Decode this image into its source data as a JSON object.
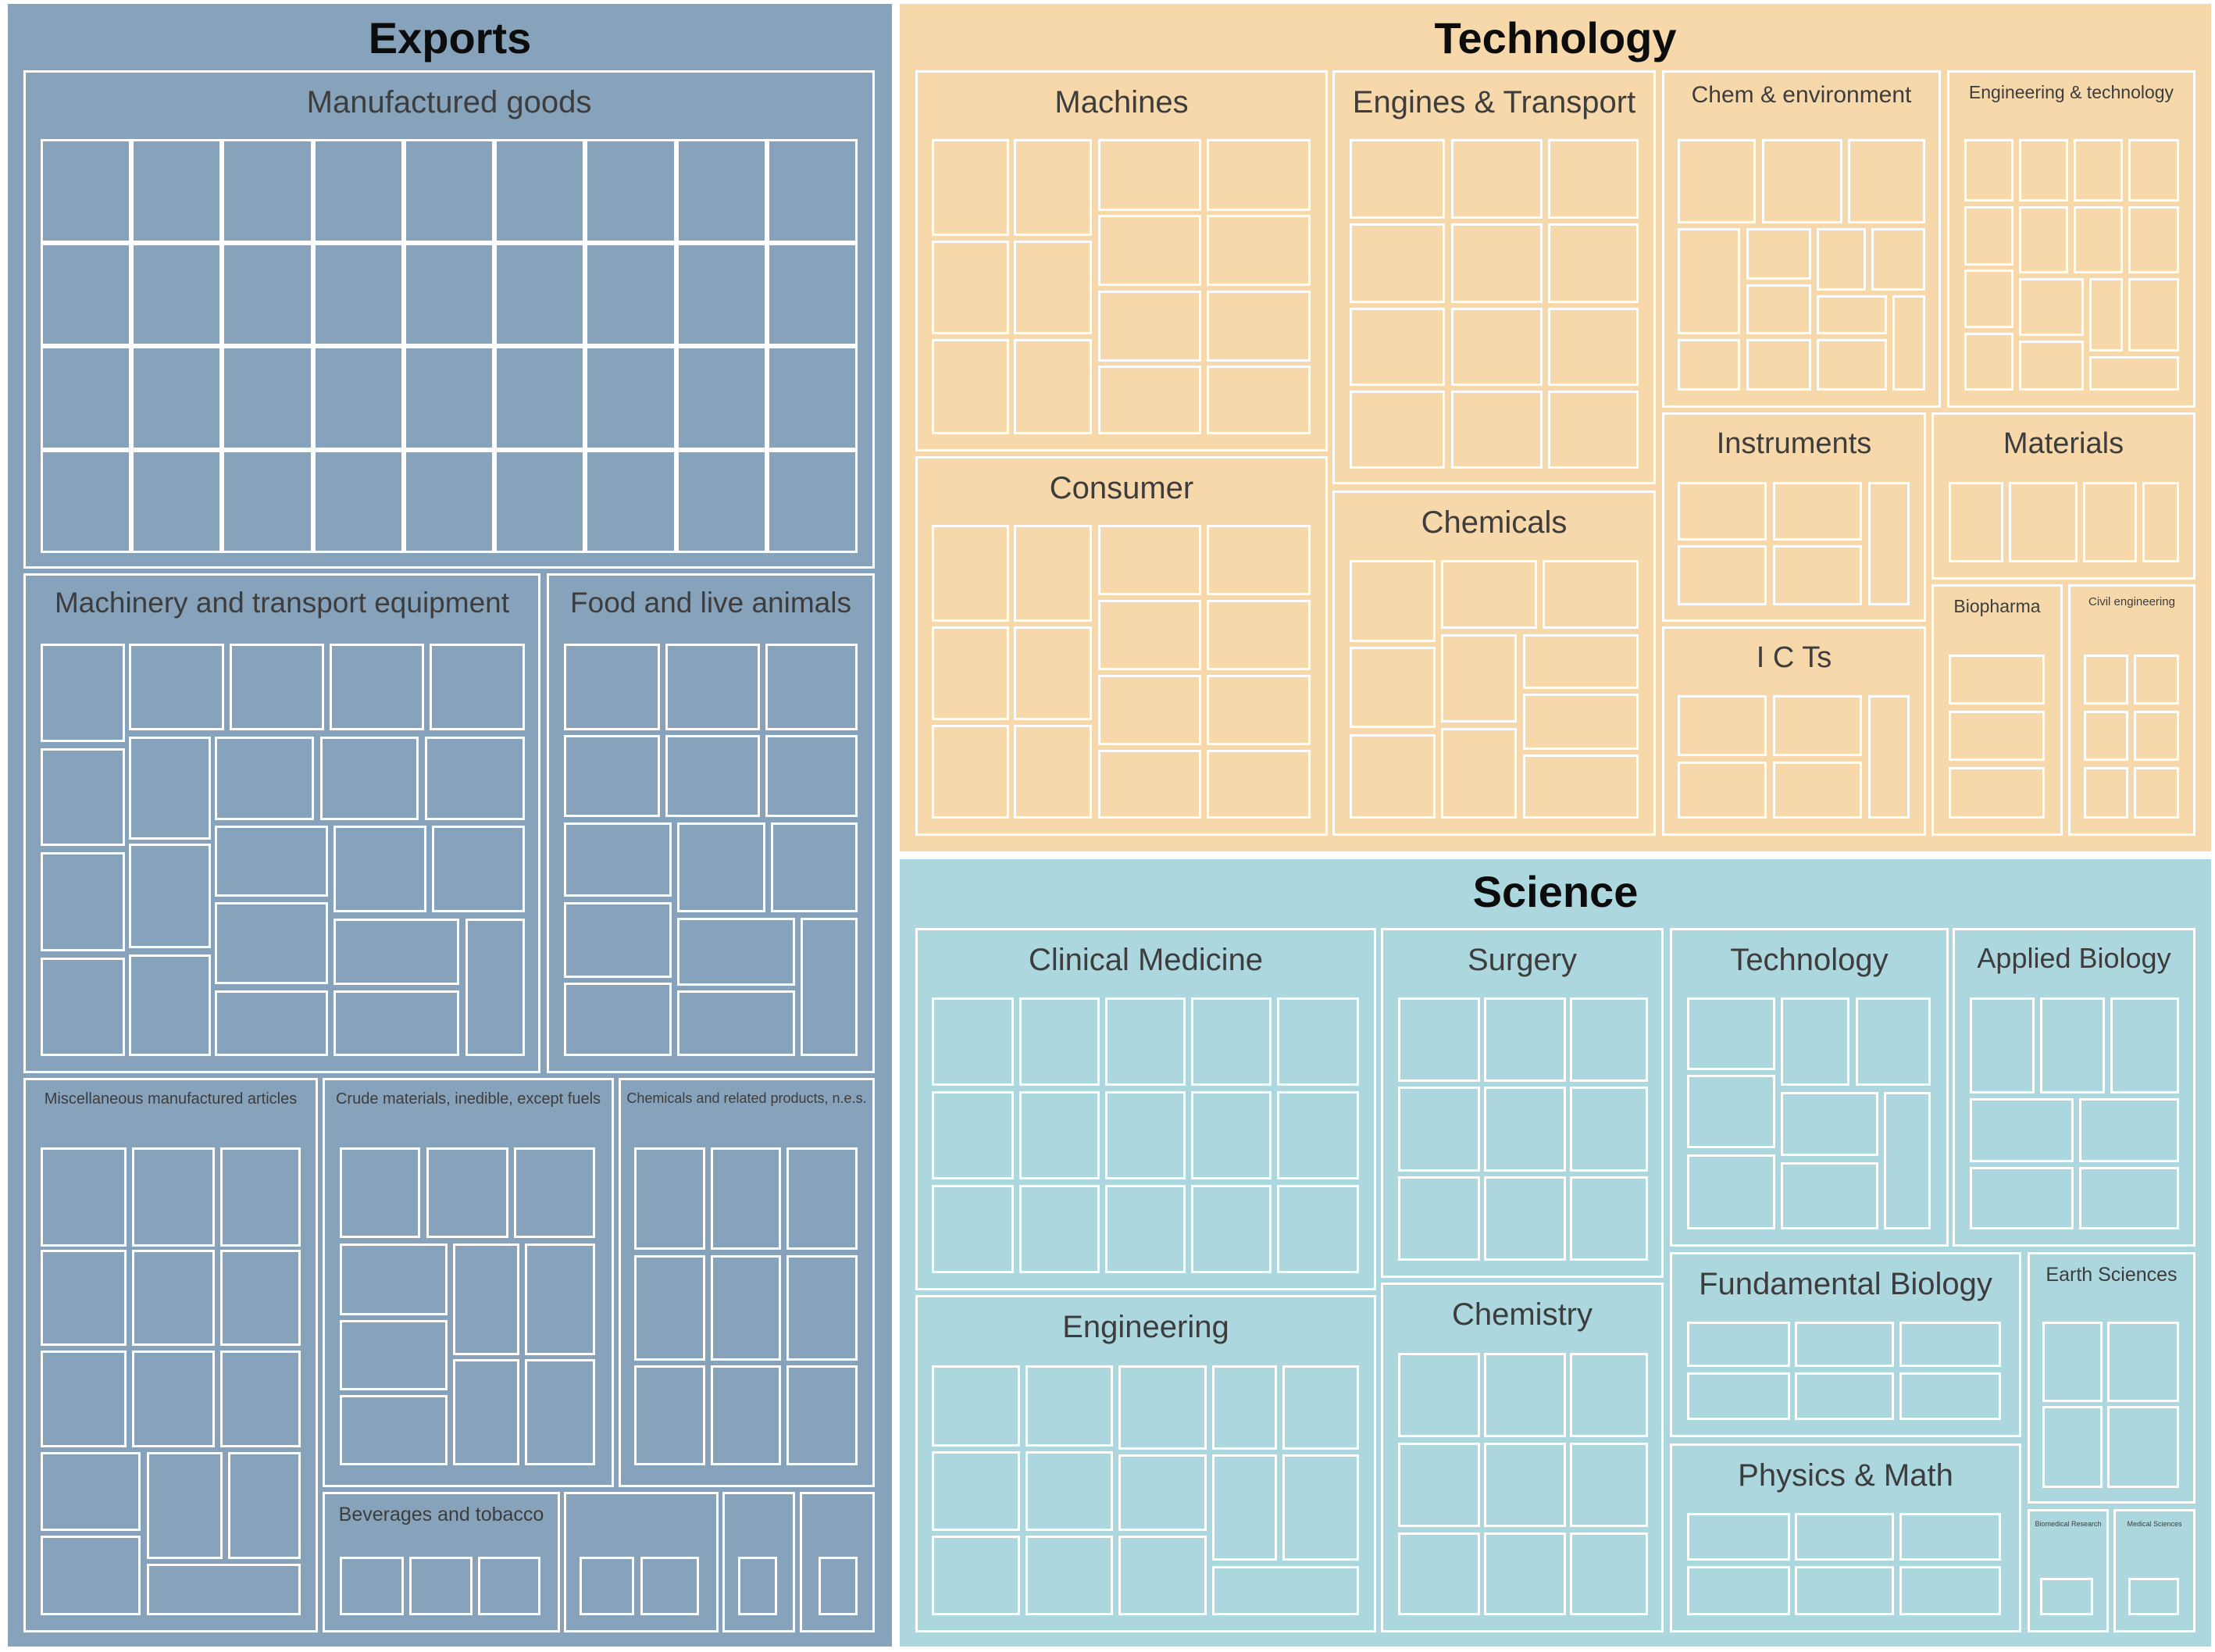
{
  "panels": [
    {
      "title": "Exports",
      "color": "#86a3bb",
      "groups": [
        {
          "label": "Manufactured goods"
        },
        {
          "label": "Machinery and transport equipment"
        },
        {
          "label": "Food and live animals"
        },
        {
          "label": "Miscellaneous manufactured articles"
        },
        {
          "label": "Crude materials, inedible, except fuels"
        },
        {
          "label": "Chemicals and related products, n.e.s."
        },
        {
          "label": "Beverages and tobacco"
        },
        {
          "label": ""
        },
        {
          "label": ""
        },
        {
          "label": ""
        }
      ]
    },
    {
      "title": "Technology",
      "color": "#f7d8ab",
      "groups": [
        {
          "label": "Machines"
        },
        {
          "label": "Engines &  Transport"
        },
        {
          "label": "Chem & environment"
        },
        {
          "label": "Engineering & technology"
        },
        {
          "label": "Consumer"
        },
        {
          "label": "Chemicals"
        },
        {
          "label": "Instruments"
        },
        {
          "label": "Materials"
        },
        {
          "label": "I C Ts"
        },
        {
          "label": "Biopharma"
        },
        {
          "label": "Civil engineering"
        }
      ]
    },
    {
      "title": "Science",
      "color": "#acd7df",
      "groups": [
        {
          "label": "Clinical  Medicine"
        },
        {
          "label": "Surgery"
        },
        {
          "label": "Technology"
        },
        {
          "label": "Applied  Biology"
        },
        {
          "label": "Engineering"
        },
        {
          "label": "Chemistry"
        },
        {
          "label": "Fundamental  Biology"
        },
        {
          "label": "Earth  Sciences"
        },
        {
          "label": "Physics &  Math"
        },
        {
          "label": "Biomedical Research"
        },
        {
          "label": "Medical Sciences"
        }
      ]
    }
  ]
}
